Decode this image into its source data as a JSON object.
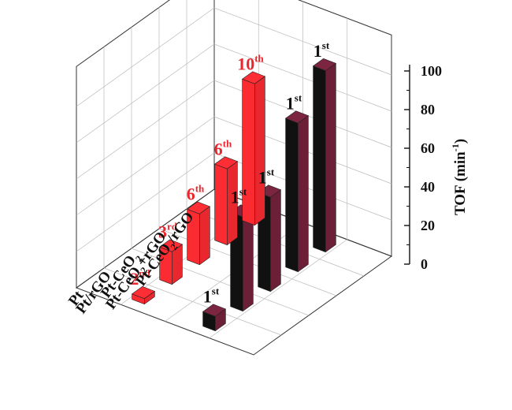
{
  "chart_data": {
    "type": "bar",
    "title": "",
    "xlabel": "",
    "ylabel": "TOF (min⁻¹)",
    "ylabel_parts": {
      "main": "TOF (min",
      "sup": "-1",
      "close": ")"
    },
    "ylim": [
      0,
      100
    ],
    "y_ticks": [
      "0",
      "20",
      "40",
      "60",
      "80",
      "100"
    ],
    "categories": [
      {
        "base": "Pt-CeO",
        "sub": "2",
        "rest": "/rGO"
      },
      {
        "base": "Pt-CeO",
        "sub": "2",
        "rest": "+rGO"
      },
      {
        "base": "Pt-CeO",
        "sub": "2",
        "rest": ""
      },
      {
        "base": "Pt/rGO",
        "sub": "",
        "rest": ""
      },
      {
        "base": "Pt",
        "sub": "",
        "rest": ""
      }
    ],
    "series": [
      {
        "color": "#e8282e",
        "values": [
          78,
          42,
          28,
          18,
          3
        ],
        "labels": [
          {
            "num": "10",
            "sup": "th"
          },
          {
            "num": "6",
            "sup": "th"
          },
          {
            "num": "6",
            "sup": "th"
          },
          {
            "num": "3",
            "sup": "rd"
          },
          {
            "num": "2",
            "sup": "nd"
          }
        ]
      },
      {
        "color": "#6b2038",
        "values": [
          100,
          82,
          52,
          52,
          8
        ],
        "labels": [
          {
            "num": "1",
            "sup": "st"
          },
          {
            "num": "1",
            "sup": "st"
          },
          {
            "num": "1",
            "sup": "st"
          },
          {
            "num": "1",
            "sup": "st"
          },
          {
            "num": "1",
            "sup": "st"
          }
        ]
      }
    ],
    "grid": true,
    "legend": "none"
  }
}
